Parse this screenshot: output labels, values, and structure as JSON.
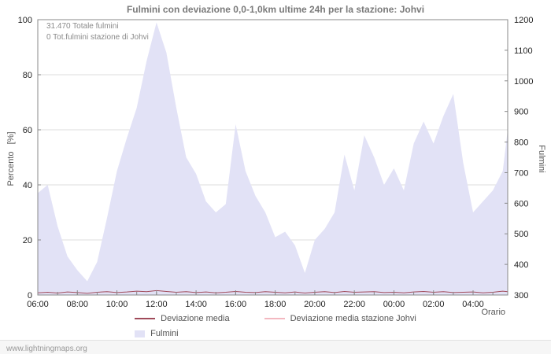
{
  "footer": {
    "watermark": "www.lightningmaps.org"
  },
  "chart_data": {
    "type": "area",
    "title": "Fulmini con deviazione 0,0-1,0km ultime 24h per la stazione: Johvi",
    "x_label": "Orario",
    "x_min": 0,
    "x_max": 23.75,
    "x_ticks": [
      {
        "pos": 0,
        "label": "06:00"
      },
      {
        "pos": 2,
        "label": "08:00"
      },
      {
        "pos": 4,
        "label": "10:00"
      },
      {
        "pos": 6,
        "label": "12:00"
      },
      {
        "pos": 8,
        "label": "14:00"
      },
      {
        "pos": 10,
        "label": "16:00"
      },
      {
        "pos": 12,
        "label": "18:00"
      },
      {
        "pos": 14,
        "label": "20:00"
      },
      {
        "pos": 16,
        "label": "22:00"
      },
      {
        "pos": 18,
        "label": "00:00"
      },
      {
        "pos": 20,
        "label": "02:00"
      },
      {
        "pos": 22,
        "label": "04:00"
      }
    ],
    "left_axis": {
      "label": "Percento   [%]",
      "min": 0,
      "max": 100,
      "ticks": [
        0,
        20,
        40,
        60,
        80,
        100
      ]
    },
    "right_axis": {
      "label": "Fulmini",
      "min": 300,
      "max": 1200,
      "ticks": [
        300,
        400,
        500,
        600,
        700,
        800,
        900,
        1000,
        1100,
        1200
      ]
    },
    "annotations": {
      "total": "31.470 Totale fulmini",
      "station": "0 Tot.fulmini stazione di Johvi"
    },
    "grid": "horizontal",
    "legend_position": "bottom",
    "series": [
      {
        "name": "Fulmini",
        "type": "area",
        "axis": "left",
        "color": "#e2e2f6",
        "x": [
          0,
          0.5,
          1,
          1.5,
          2,
          2.5,
          3,
          3.5,
          4,
          4.5,
          5,
          5.5,
          6,
          6.5,
          7,
          7.5,
          8,
          8.5,
          9,
          9.5,
          10,
          10.5,
          11,
          11.5,
          12,
          12.5,
          13,
          13.5,
          14,
          14.5,
          15,
          15.5,
          16,
          16.5,
          17,
          17.5,
          18,
          18.5,
          19,
          19.5,
          20,
          20.5,
          21,
          21.5,
          22,
          22.5,
          23,
          23.5,
          23.75
        ],
        "values": [
          37,
          40,
          25,
          14,
          9,
          5,
          12,
          28,
          45,
          57,
          68,
          85,
          99,
          88,
          68,
          50,
          44,
          34,
          30,
          33,
          62,
          45,
          36,
          30,
          21,
          23,
          18,
          8,
          20,
          24,
          30,
          51,
          38,
          58,
          50,
          40,
          46,
          38,
          55,
          63,
          55,
          65,
          73,
          48,
          30,
          34,
          38,
          45,
          60
        ]
      },
      {
        "name": "Deviazione media",
        "type": "line",
        "axis": "left",
        "color": "#a04a5a",
        "x": [
          0,
          0.5,
          1,
          1.5,
          2,
          2.5,
          3,
          3.5,
          4,
          4.5,
          5,
          5.5,
          6,
          6.5,
          7,
          7.5,
          8,
          8.5,
          9,
          9.5,
          10,
          10.5,
          11,
          11.5,
          12,
          12.5,
          13,
          13.5,
          14,
          14.5,
          15,
          15.5,
          16,
          16.5,
          17,
          17.5,
          18,
          18.5,
          19,
          19.5,
          20,
          20.5,
          21,
          21.5,
          22,
          22.5,
          23,
          23.5,
          23.75
        ],
        "values": [
          0.8,
          1.0,
          0.7,
          1.1,
          0.9,
          0.6,
          1.0,
          1.2,
          0.9,
          1.1,
          1.4,
          1.2,
          1.6,
          1.3,
          1.0,
          1.2,
          0.9,
          1.1,
          0.8,
          1.0,
          1.3,
          1.0,
          0.9,
          1.2,
          1.0,
          0.8,
          1.1,
          0.7,
          1.0,
          1.2,
          0.9,
          1.3,
          1.0,
          1.1,
          1.2,
          0.9,
          1.0,
          0.8,
          1.1,
          1.3,
          1.0,
          1.2,
          0.9,
          1.0,
          1.1,
          0.8,
          1.0,
          1.4,
          1.2
        ]
      },
      {
        "name": "Deviazione media stazione Johvi",
        "type": "line",
        "axis": "left",
        "color": "#f3b8c0",
        "x": [
          0,
          0.5,
          1,
          1.5,
          2,
          2.5,
          3,
          3.5,
          4,
          4.5,
          5,
          5.5,
          6,
          6.5,
          7,
          7.5,
          8,
          8.5,
          9,
          9.5,
          10,
          10.5,
          11,
          11.5,
          12,
          12.5,
          13,
          13.5,
          14,
          14.5,
          15,
          15.5,
          16,
          16.5,
          17,
          17.5,
          18,
          18.5,
          19,
          19.5,
          20,
          20.5,
          21,
          21.5,
          22,
          22.5,
          23,
          23.5,
          23.75
        ],
        "values": [
          0,
          0,
          0,
          0,
          0,
          0,
          0,
          0,
          0,
          0,
          0,
          0,
          0,
          0,
          0,
          0,
          0,
          0,
          0,
          0,
          0,
          0,
          0,
          0,
          0,
          0,
          0,
          0,
          0,
          0,
          0,
          0,
          0,
          0,
          0,
          0,
          0,
          0,
          0,
          0,
          0,
          0,
          0,
          0,
          0,
          0,
          0,
          0,
          0
        ]
      }
    ]
  }
}
